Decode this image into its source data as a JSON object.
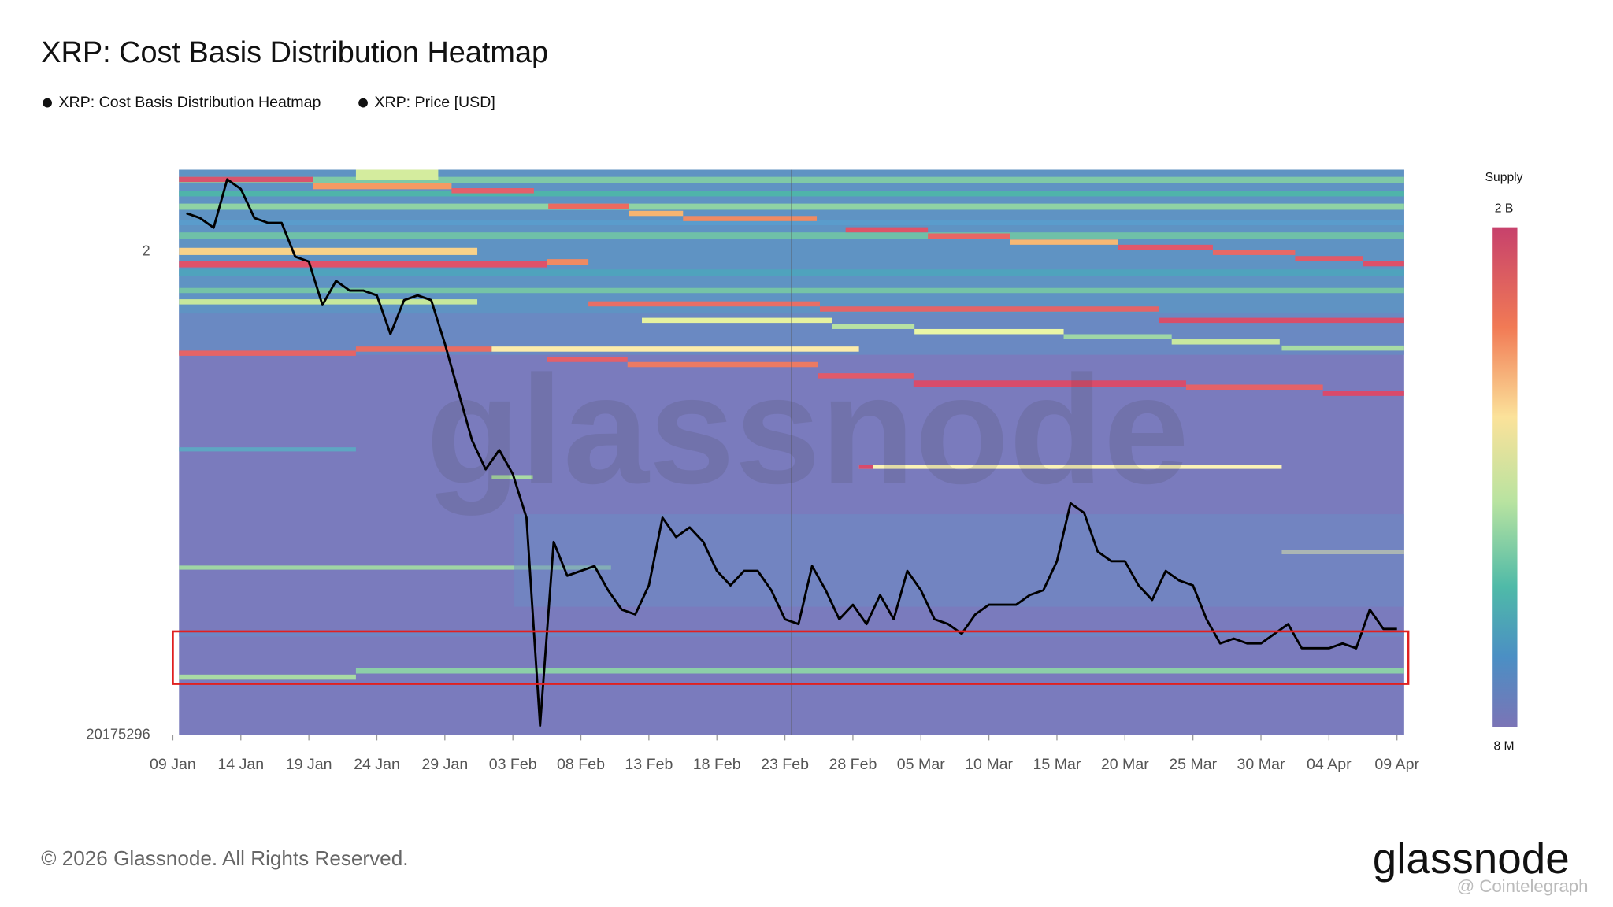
{
  "chart_data": {
    "type": "line",
    "title": "XRP: Cost Basis Distribution Heatmap",
    "heatmap_name": "XRP: Cost Basis Distribution Heatmap",
    "watermark": "glassnode",
    "x": [
      "10 Jan",
      "11 Jan",
      "12 Jan",
      "13 Jan",
      "14 Jan",
      "15 Jan",
      "16 Jan",
      "17 Jan",
      "18 Jan",
      "19 Jan",
      "20 Jan",
      "21 Jan",
      "22 Jan",
      "23 Jan",
      "24 Jan",
      "25 Jan",
      "26 Jan",
      "27 Jan",
      "28 Jan",
      "29 Jan",
      "30 Jan",
      "31 Jan",
      "01 Feb",
      "02 Feb",
      "03 Feb",
      "04 Feb",
      "05 Feb",
      "06 Feb",
      "07 Feb",
      "08 Feb",
      "09 Feb",
      "10 Feb",
      "11 Feb",
      "12 Feb",
      "13 Feb",
      "14 Feb",
      "15 Feb",
      "16 Feb",
      "17 Feb",
      "18 Feb",
      "19 Feb",
      "20 Feb",
      "21 Feb",
      "22 Feb",
      "23 Feb",
      "24 Feb",
      "25 Feb",
      "26 Feb",
      "27 Feb",
      "28 Feb",
      "01 Mar",
      "02 Mar",
      "03 Mar",
      "04 Mar",
      "05 Mar",
      "06 Mar",
      "07 Mar",
      "08 Mar",
      "09 Mar",
      "10 Mar",
      "11 Mar",
      "12 Mar",
      "13 Mar",
      "14 Mar",
      "15 Mar",
      "16 Mar",
      "17 Mar",
      "18 Mar",
      "19 Mar",
      "20 Mar",
      "21 Mar",
      "22 Mar",
      "23 Mar",
      "24 Mar",
      "25 Mar",
      "26 Mar",
      "27 Mar",
      "28 Mar",
      "29 Mar",
      "30 Mar",
      "31 Mar",
      "01 Apr",
      "02 Apr",
      "03 Apr",
      "04 Apr",
      "05 Apr",
      "06 Apr",
      "07 Apr",
      "08 Apr",
      "09 Apr"
    ],
    "series": [
      {
        "name": "XRP: Price [USD]",
        "color": "#000000",
        "values": [
          2.08,
          2.07,
          2.05,
          2.15,
          2.13,
          2.07,
          2.06,
          2.06,
          1.99,
          1.98,
          1.89,
          1.94,
          1.92,
          1.92,
          1.91,
          1.83,
          1.9,
          1.91,
          1.9,
          1.81,
          1.71,
          1.61,
          1.55,
          1.59,
          1.54,
          1.45,
          1.02,
          1.4,
          1.33,
          1.34,
          1.35,
          1.3,
          1.26,
          1.25,
          1.31,
          1.45,
          1.41,
          1.43,
          1.4,
          1.34,
          1.31,
          1.34,
          1.34,
          1.3,
          1.24,
          1.23,
          1.35,
          1.3,
          1.24,
          1.27,
          1.23,
          1.29,
          1.24,
          1.34,
          1.3,
          1.24,
          1.23,
          1.21,
          1.25,
          1.27,
          1.27,
          1.27,
          1.29,
          1.3,
          1.36,
          1.48,
          1.46,
          1.38,
          1.36,
          1.36,
          1.31,
          1.28,
          1.34,
          1.32,
          1.31,
          1.24,
          1.19,
          1.2,
          1.19,
          1.19,
          1.21,
          1.23,
          1.18,
          1.18,
          1.18,
          1.19,
          1.18,
          1.26,
          1.22,
          1.22
        ]
      }
    ],
    "xlim": [
      "09 Jan",
      "09 Apr"
    ],
    "xticks": [
      "09 Jan",
      "14 Jan",
      "19 Jan",
      "24 Jan",
      "29 Jan",
      "03 Feb",
      "08 Feb",
      "13 Feb",
      "18 Feb",
      "23 Feb",
      "28 Feb",
      "05 Mar",
      "10 Mar",
      "15 Mar",
      "20 Mar",
      "25 Mar",
      "30 Mar",
      "04 Apr",
      "09 Apr"
    ],
    "ylim": [
      1.0,
      2.17
    ],
    "yticks": [
      2
    ],
    "y_min_label": "20175296",
    "grid": false,
    "colorbar": {
      "title": "Supply",
      "max_label": "2 B",
      "min_label": "8 M"
    },
    "footer": "© 2026 Glassnode. All Rights Reserved.",
    "logo": "glassnode",
    "source_watermark": "@ Cointelegraph"
  }
}
